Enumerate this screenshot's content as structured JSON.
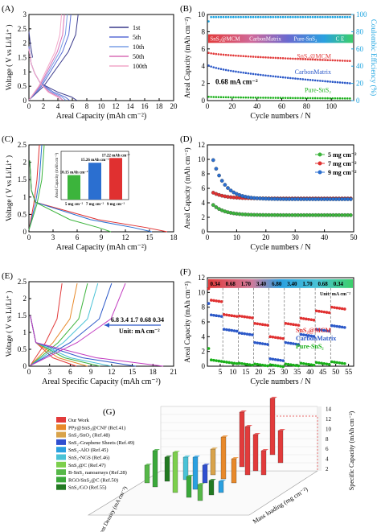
{
  "chart_data": [
    {
      "id": "A",
      "panel_label": "(A)",
      "type": "line",
      "xlabel": "Areal Capacity  (mAh cm⁻²)",
      "ylabel": "Voltage ( V vs Li/Li⁺ )",
      "xlim": [
        0,
        20
      ],
      "ylim": [
        0,
        3
      ],
      "xticks": [
        0,
        2,
        4,
        6,
        8,
        10,
        12,
        14,
        16,
        18,
        20
      ],
      "yticks": [
        0,
        0.5,
        1,
        1.5,
        2,
        2.5,
        3
      ],
      "legend": [
        "1st",
        "5th",
        "10th",
        "50th",
        "100th"
      ],
      "series_colors": [
        "#3a3a8c",
        "#5b6fd6",
        "#7a9fe6",
        "#d86fb5",
        "#f2a7c8"
      ],
      "series": [
        {
          "name": "1st",
          "charge_end": 6.8,
          "discharge_end": 6.6
        },
        {
          "name": "5th",
          "charge_end": 5.8,
          "discharge_end": 5.6
        },
        {
          "name": "10th",
          "charge_end": 5.3,
          "discharge_end": 5.1
        },
        {
          "name": "50th",
          "charge_end": 4.9,
          "discharge_end": 4.7
        },
        {
          "name": "100th",
          "charge_end": 4.5,
          "discharge_end": 4.4
        }
      ]
    },
    {
      "id": "B",
      "panel_label": "(B)",
      "type": "scatter",
      "xlabel": "Cycle numbers / N",
      "ylabel": "Areal Capacity  (mAh cm⁻²)",
      "y2label": "Coulombic Efficiency (%)",
      "xlim": [
        0,
        118
      ],
      "ylim": [
        0,
        10
      ],
      "y2lim": [
        0,
        100
      ],
      "xticks": [
        0,
        20,
        40,
        60,
        80,
        100
      ],
      "yticks": [
        0,
        2,
        4,
        6,
        8,
        10
      ],
      "y2ticks": [
        0,
        20,
        40,
        60,
        80,
        100
      ],
      "band_labels": [
        "SnS₂@MCM",
        "CarbonMatrix",
        "Pure-SnS₂",
        "C E"
      ],
      "series_labels": [
        "SnS₂@MCM",
        "CarbonMatrix",
        "Pure-SnS₂"
      ],
      "annotation": "0.68 mA cm⁻²",
      "series": [
        {
          "name": "SnS₂@MCM",
          "color": "#e23b3b",
          "start": 5.6,
          "end": 4.6
        },
        {
          "name": "CarbonMatrix",
          "color": "#2b58c8",
          "start": 4.2,
          "end": 2.0
        },
        {
          "name": "Pure-SnS₂",
          "color": "#19b019",
          "start": 0.45,
          "end": 0.25
        },
        {
          "name": "CE",
          "color": "#1aa3e0",
          "value": 97
        }
      ]
    },
    {
      "id": "C",
      "panel_label": "(C)",
      "type": "line",
      "xlabel": "Areal Capacity  (mAh cm⁻²)",
      "ylabel": "Voltage ( V vs Li/Li⁺ )",
      "xlim": [
        0,
        18
      ],
      "ylim": [
        0,
        2.5
      ],
      "xticks": [
        0,
        3,
        6,
        9,
        12,
        15,
        18
      ],
      "yticks": [
        0,
        0.5,
        1,
        1.5,
        2,
        2.5
      ],
      "inset": {
        "ylabel": "Areal Capacity (mAh cm⁻²)",
        "categories": [
          "5 mg cm⁻²",
          "7 mg cm⁻²",
          "9 mg cm⁻²"
        ],
        "values": [
          10.15,
          15.26,
          17.22
        ],
        "labels": [
          "10.15 mAh cm⁻²",
          "15.26 mAh cm⁻²",
          "17.22 mAh cm⁻²"
        ],
        "colors": [
          "#3cb43c",
          "#2b6fd0",
          "#e03030"
        ]
      }
    },
    {
      "id": "D",
      "panel_label": "(D)",
      "type": "scatter",
      "xlabel": "Cycle numbers / N",
      "ylabel": "Areal Capacity  (mAh cm⁻²)",
      "xlim": [
        0,
        50
      ],
      "ylim": [
        0,
        12
      ],
      "xticks": [
        0,
        10,
        20,
        30,
        40,
        50
      ],
      "yticks": [
        0,
        2,
        4,
        6,
        8,
        10,
        12
      ],
      "series": [
        {
          "name": "5 mg cm⁻²",
          "color": "#3cb43c",
          "values_start": 3.7,
          "values_end": 2.3
        },
        {
          "name": "7 mg cm⁻²",
          "color": "#e03030",
          "values_start": 5.4,
          "values_end": 4.6
        },
        {
          "name": "9 mg cm⁻²",
          "color": "#2b6fd0",
          "values_start": 9.9,
          "values_end": 4.5
        }
      ]
    },
    {
      "id": "E",
      "panel_label": "(E)",
      "type": "line",
      "xlabel": "Areal Specific Capacity  (mAh cm⁻²)",
      "ylabel": "Voltage ( V vs Li/Li⁺ )",
      "xlim": [
        0,
        21
      ],
      "ylim": [
        0,
        2.5
      ],
      "xticks": [
        0,
        3,
        6,
        9,
        12,
        15,
        18,
        21
      ],
      "yticks": [
        0,
        0.5,
        1,
        1.5,
        2,
        2.5
      ],
      "rates_text": "6.8  3.4  1.7  0.68  0.34",
      "unit_text": "Unit: mA cm⁻²"
    },
    {
      "id": "F",
      "panel_label": "(F)",
      "type": "scatter",
      "xlabel": "Cycle numbers / N",
      "ylabel": "Areal Capacity  (mAh cm⁻²)",
      "xlim": [
        0,
        57
      ],
      "ylim": [
        0,
        12
      ],
      "xticks": [
        5,
        10,
        15,
        20,
        25,
        30,
        35,
        40,
        45,
        50,
        55
      ],
      "yticks": [
        0,
        2,
        4,
        6,
        8,
        10,
        12
      ],
      "rate_labels": [
        "0.34",
        "0.68",
        "1.70",
        "3.40",
        "6.80",
        "3.40",
        "1.70",
        "0.68",
        "0.34"
      ],
      "unit_text": "Unit: mA cm⁻²",
      "series_labels": [
        "SnS₂@MCM",
        "CarbonMatrix",
        "Pure-SnS₂"
      ],
      "series": [
        {
          "name": "SnS₂@MCM",
          "color": "#e03030",
          "levels": [
            9.0,
            7.0,
            6.8,
            5.8,
            4.0,
            5.8,
            6.5,
            7.5,
            8.0
          ]
        },
        {
          "name": "CarbonMatrix",
          "color": "#2b58c8",
          "levels": [
            7.0,
            5.0,
            4.5,
            3.2,
            1.0,
            3.2,
            4.3,
            5.0,
            5.5
          ]
        },
        {
          "name": "Pure-SnS₂",
          "color": "#19b019",
          "levels": [
            0.9,
            0.6,
            0.4,
            0.3,
            0.2,
            0.3,
            0.4,
            0.5,
            0.6
          ]
        }
      ]
    },
    {
      "id": "G",
      "panel_label": "(G)",
      "type": "bar",
      "xlabel": "Current Density (mA cm⁻²)",
      "ylabel": "Mass loading (mg cm⁻²)",
      "zlabel": "Specific Capacity (mAh cm⁻²)",
      "zticks": [
        2,
        4,
        6,
        8,
        10,
        12,
        14
      ],
      "legend": [
        "Our Work",
        "PPy@SnS₂@CNF (Ref.41)",
        "SnS₂/SnO₂ (Ref.48)",
        "SnS₂-Graphene Sheets (Ref.49)",
        "SnS₂-AlO (Ref.45)",
        "SnS₂-NGS (Ref.46)",
        "SnS₂@C (Ref.47)",
        "B-SnS₂ nanoarrays (Ref.28)",
        "RGO/SnS₂@C (Ref.50)",
        "SnS₂/GO (Ref.55)"
      ],
      "legend_colors": [
        "#e23b3b",
        "#e8892a",
        "#d9a34a",
        "#2f4fd0",
        "#2aa0e0",
        "#49c2d6",
        "#7ccf4c",
        "#56b848",
        "#3aa83a",
        "#227a22"
      ]
    }
  ]
}
